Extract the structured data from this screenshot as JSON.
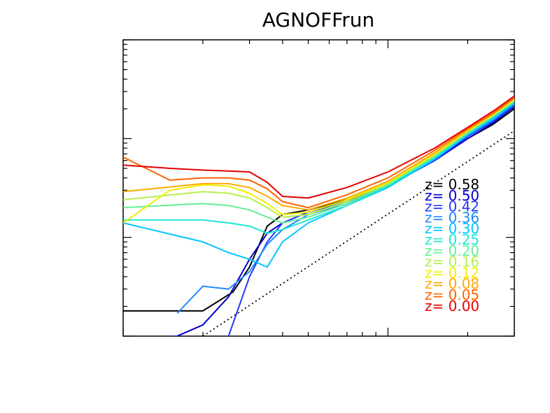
{
  "chart_data": {
    "type": "line",
    "title": "AGNOFFrun",
    "xlabel": "",
    "ylabel": "",
    "xscale": "log",
    "yscale": "log",
    "xlim": [
      1,
      30
    ],
    "ylim": [
      1,
      1000
    ],
    "tick_labels_printed": false,
    "grid": false,
    "legend_placement": "right",
    "reference_line": {
      "style": "dotted",
      "color": "#000000",
      "x": [
        2,
        30
      ],
      "y": [
        1,
        120
      ]
    },
    "series": [
      {
        "name": "z=  0.58",
        "color": "#000000",
        "x": [
          1.0,
          2.0,
          2.6,
          3.0,
          3.5,
          4.0,
          5.0,
          7.0,
          10.0,
          15.0,
          20.0,
          25.0,
          30.0
        ],
        "y": [
          1.8,
          1.8,
          2.8,
          5.0,
          13,
          17,
          19,
          24,
          34,
          60,
          100,
          140,
          200
        ]
      },
      {
        "name": "z=  0.50",
        "color": "#0000cc",
        "x": [
          1.0,
          1.6,
          2.0,
          2.5,
          3.0,
          3.5,
          4.0,
          5.0,
          7.0,
          10.0,
          15.0,
          20.0,
          25.0,
          30.0
        ],
        "y": [
          0.9,
          1.0,
          1.3,
          2.5,
          6.0,
          11,
          14,
          18,
          23,
          34,
          60,
          100,
          145,
          210
        ]
      },
      {
        "name": "z=  0.42",
        "color": "#1e3cff",
        "x": [
          2.0,
          2.5,
          3.0,
          3.5,
          4.0,
          5.0,
          7.0,
          10.0,
          15.0,
          20.0,
          25.0,
          30.0
        ],
        "y": [
          0.25,
          1.0,
          4.0,
          9.0,
          14,
          18,
          23,
          33,
          60,
          105,
          150,
          220
        ]
      },
      {
        "name": "z=  0.36",
        "color": "#1e8cff",
        "x": [
          1.6,
          2.0,
          2.5,
          3.0,
          3.5,
          4.0,
          5.0,
          7.0,
          10.0,
          15.0,
          20.0,
          25.0,
          30.0
        ],
        "y": [
          1.7,
          3.2,
          3.0,
          4.5,
          8.5,
          12,
          17,
          22,
          33,
          62,
          108,
          155,
          225
        ]
      },
      {
        "name": "z=  0.30",
        "color": "#00c8ff",
        "x": [
          1.0,
          2.0,
          2.5,
          3.0,
          3.5,
          4.0,
          5.0,
          7.0,
          10.0,
          15.0,
          20.0,
          25.0,
          30.0
        ],
        "y": [
          14,
          9,
          7,
          6,
          5,
          9,
          14,
          21,
          32,
          62,
          110,
          160,
          230
        ]
      },
      {
        "name": "z=  0.25",
        "color": "#20e6d2",
        "x": [
          1.0,
          2.0,
          2.5,
          3.0,
          3.5,
          4.0,
          5.0,
          7.0,
          10.0,
          15.0,
          20.0,
          25.0,
          30.0
        ],
        "y": [
          15,
          15,
          14,
          13,
          11,
          12,
          15,
          21,
          33,
          64,
          112,
          165,
          235
        ]
      },
      {
        "name": "z=  0.20",
        "color": "#64f096",
        "x": [
          1.0,
          2.0,
          2.5,
          3.0,
          3.5,
          4.0,
          5.0,
          7.0,
          10.0,
          15.0,
          20.0,
          25.0,
          30.0
        ],
        "y": [
          20,
          22,
          21,
          19,
          16,
          14,
          16,
          22,
          34,
          66,
          115,
          170,
          240
        ]
      },
      {
        "name": "z=  0.16",
        "color": "#b4f050",
        "x": [
          1.0,
          2.0,
          2.5,
          3.0,
          3.5,
          4.0,
          5.0,
          7.0,
          10.0,
          15.0,
          20.0,
          25.0,
          30.0
        ],
        "y": [
          24,
          29,
          28,
          25,
          20,
          16,
          17,
          23,
          35,
          68,
          118,
          172,
          245
        ]
      },
      {
        "name": "z=  0.12",
        "color": "#f0f000",
        "x": [
          1.0,
          1.5,
          2.0,
          2.5,
          3.0,
          3.5,
          4.0,
          5.0,
          7.0,
          10.0,
          15.0,
          20.0,
          25.0,
          30.0
        ],
        "y": [
          14,
          30,
          34,
          33,
          28,
          22,
          17,
          18,
          24,
          36,
          70,
          120,
          175,
          250
        ]
      },
      {
        "name": "z=  0.08",
        "color": "#ffaa00",
        "x": [
          1.0,
          2.0,
          2.5,
          3.0,
          3.5,
          4.0,
          5.0,
          7.0,
          10.0,
          15.0,
          20.0,
          25.0,
          30.0
        ],
        "y": [
          29,
          35,
          35,
          32,
          26,
          21,
          19,
          25,
          37,
          72,
          122,
          178,
          255
        ]
      },
      {
        "name": "z=  0.05",
        "color": "#ff6400",
        "x": [
          1.0,
          1.5,
          2.0,
          2.5,
          3.0,
          3.5,
          4.0,
          5.0,
          7.0,
          10.0,
          15.0,
          20.0,
          25.0,
          30.0
        ],
        "y": [
          65,
          38,
          40,
          40,
          38,
          31,
          23,
          20,
          27,
          40,
          76,
          126,
          182,
          260
        ]
      },
      {
        "name": "z=  0.00",
        "color": "#e60000",
        "x": [
          1.0,
          1.5,
          2.0,
          2.5,
          3.0,
          3.5,
          4.0,
          5.0,
          7.0,
          10.0,
          15.0,
          20.0,
          25.0,
          30.0
        ],
        "y": [
          54,
          50,
          48,
          47,
          46,
          36,
          26,
          25,
          32,
          46,
          80,
          130,
          190,
          270
        ]
      }
    ]
  }
}
